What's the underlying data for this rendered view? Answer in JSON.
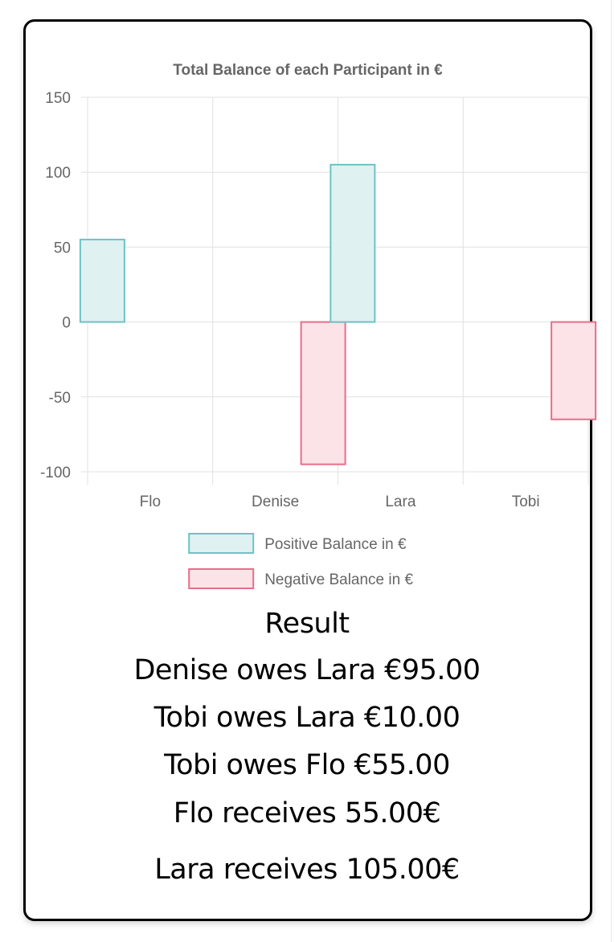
{
  "chart_data": {
    "type": "bar",
    "title": "Total Balance of each Participant in €",
    "categories": [
      "Flo",
      "Denise",
      "Lara",
      "Tobi"
    ],
    "series": [
      {
        "name": "Positive Balance in €",
        "values": [
          55,
          0,
          105,
          0
        ],
        "fill": "#e0f1f1",
        "stroke": "#6cc3c3"
      },
      {
        "name": "Negative Balance in €",
        "values": [
          0,
          -95,
          0,
          -65
        ],
        "fill": "#fbe3e8",
        "stroke": "#ea6d89"
      }
    ],
    "ylim": [
      -100,
      150
    ],
    "yticks": [
      150,
      100,
      50,
      0,
      -50,
      -100
    ],
    "grid": true,
    "legend": "bottom"
  },
  "result": {
    "heading": "Result",
    "lines": [
      "Denise owes Lara €95.00",
      "Tobi owes Lara €10.00",
      "Tobi owes Flo €55.00",
      "Flo receives 55.00€",
      "Lara receives 105.00€"
    ]
  }
}
